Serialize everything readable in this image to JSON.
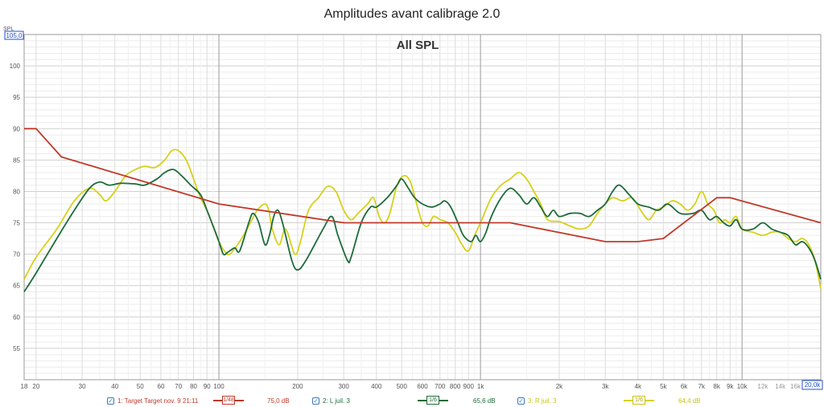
{
  "chart_data": {
    "type": "line",
    "title": "Amplitudes avant calibrage 2.0",
    "plot_label": "All SPL",
    "ylabel": "SPL",
    "y_top_value": "105,0",
    "x_end_value": "20,0k",
    "xscale": "log",
    "xlim": [
      18,
      20000
    ],
    "ylim": [
      50,
      105
    ],
    "grid": true,
    "y_ticks": [
      55,
      60,
      65,
      70,
      75,
      80,
      85,
      90,
      95,
      100
    ],
    "x_ticks": [
      {
        "v": 18,
        "label": "18"
      },
      {
        "v": 20,
        "label": "20"
      },
      {
        "v": 30,
        "label": "30"
      },
      {
        "v": 40,
        "label": "40"
      },
      {
        "v": 50,
        "label": "50"
      },
      {
        "v": 60,
        "label": "60"
      },
      {
        "v": 70,
        "label": "70"
      },
      {
        "v": 80,
        "label": "80"
      },
      {
        "v": 90,
        "label": "90"
      },
      {
        "v": 100,
        "label": "100"
      },
      {
        "v": 200,
        "label": "200"
      },
      {
        "v": 300,
        "label": "300"
      },
      {
        "v": 400,
        "label": "400"
      },
      {
        "v": 500,
        "label": "500"
      },
      {
        "v": 600,
        "label": "600"
      },
      {
        "v": 700,
        "label": "700"
      },
      {
        "v": 800,
        "label": "800"
      },
      {
        "v": 900,
        "label": "900"
      },
      {
        "v": 1000,
        "label": "1k"
      },
      {
        "v": 2000,
        "label": "2k"
      },
      {
        "v": 3000,
        "label": "3k"
      },
      {
        "v": 4000,
        "label": "4k"
      },
      {
        "v": 5000,
        "label": "5k"
      },
      {
        "v": 6000,
        "label": "6k"
      },
      {
        "v": 7000,
        "label": "7k"
      },
      {
        "v": 8000,
        "label": "8k"
      },
      {
        "v": 9000,
        "label": "9k"
      },
      {
        "v": 10000,
        "label": "10k"
      },
      {
        "v": 12000,
        "label": "12k"
      },
      {
        "v": 14000,
        "label": "14k"
      },
      {
        "v": 16000,
        "label": "16k"
      },
      {
        "v": 18000,
        "label": "18k"
      }
    ],
    "series": [
      {
        "name": "1: Target Target nov. 9 21:11",
        "color": "#c0392b",
        "smoothing": "1/48",
        "level": "75,0 dB",
        "points": [
          [
            18,
            90
          ],
          [
            20,
            90
          ],
          [
            25,
            85.5
          ],
          [
            100,
            78
          ],
          [
            300,
            75
          ],
          [
            1300,
            75
          ],
          [
            3000,
            72
          ],
          [
            4000,
            72
          ],
          [
            5000,
            72.5
          ],
          [
            8000,
            79
          ],
          [
            9000,
            79
          ],
          [
            20000,
            75
          ]
        ]
      },
      {
        "name": "2: L juil. 3",
        "color": "#1e6b3a",
        "smoothing": "1/6",
        "level": "65,6 dB",
        "points": [
          [
            18,
            64
          ],
          [
            20,
            67
          ],
          [
            24,
            72.5
          ],
          [
            28,
            77
          ],
          [
            32,
            80.5
          ],
          [
            35,
            81.5
          ],
          [
            38,
            81
          ],
          [
            42,
            81.3
          ],
          [
            48,
            81.2
          ],
          [
            52,
            81
          ],
          [
            58,
            82
          ],
          [
            62,
            83
          ],
          [
            67,
            83.5
          ],
          [
            72,
            82.5
          ],
          [
            78,
            81
          ],
          [
            85,
            79.5
          ],
          [
            90,
            77
          ],
          [
            95,
            74.5
          ],
          [
            100,
            72
          ],
          [
            104,
            70
          ],
          [
            108,
            70.3
          ],
          [
            115,
            71
          ],
          [
            120,
            70.5
          ],
          [
            130,
            75
          ],
          [
            135,
            76.5
          ],
          [
            142,
            75
          ],
          [
            150,
            71.5
          ],
          [
            156,
            73
          ],
          [
            162,
            76
          ],
          [
            168,
            77
          ],
          [
            175,
            75
          ],
          [
            190,
            69
          ],
          [
            200,
            67.5
          ],
          [
            215,
            69
          ],
          [
            250,
            74
          ],
          [
            270,
            76
          ],
          [
            285,
            73
          ],
          [
            310,
            69
          ],
          [
            320,
            69.5
          ],
          [
            350,
            75
          ],
          [
            380,
            77.5
          ],
          [
            400,
            77.5
          ],
          [
            440,
            79
          ],
          [
            480,
            81
          ],
          [
            500,
            82
          ],
          [
            530,
            80.5
          ],
          [
            560,
            79
          ],
          [
            600,
            78
          ],
          [
            650,
            77.5
          ],
          [
            700,
            78
          ],
          [
            730,
            78.5
          ],
          [
            770,
            77.5
          ],
          [
            820,
            75
          ],
          [
            860,
            73
          ],
          [
            920,
            72
          ],
          [
            960,
            73
          ],
          [
            1000,
            72
          ],
          [
            1050,
            73.5
          ],
          [
            1100,
            76
          ],
          [
            1200,
            79
          ],
          [
            1300,
            80.5
          ],
          [
            1400,
            79.5
          ],
          [
            1500,
            78
          ],
          [
            1600,
            79
          ],
          [
            1700,
            77.5
          ],
          [
            1800,
            76
          ],
          [
            1900,
            77
          ],
          [
            2000,
            76
          ],
          [
            2200,
            76.5
          ],
          [
            2400,
            76.5
          ],
          [
            2600,
            76
          ],
          [
            2800,
            77
          ],
          [
            3000,
            78
          ],
          [
            3200,
            80
          ],
          [
            3400,
            81
          ],
          [
            3700,
            79.5
          ],
          [
            4000,
            78
          ],
          [
            4400,
            77.5
          ],
          [
            4800,
            77
          ],
          [
            5200,
            78
          ],
          [
            5800,
            76.5
          ],
          [
            6500,
            76.5
          ],
          [
            7000,
            77
          ],
          [
            7500,
            75.5
          ],
          [
            8000,
            76
          ],
          [
            8500,
            75
          ],
          [
            9000,
            74.5
          ],
          [
            9500,
            75.5
          ],
          [
            10000,
            74
          ],
          [
            11000,
            74
          ],
          [
            12000,
            75
          ],
          [
            13000,
            74
          ],
          [
            14000,
            73.5
          ],
          [
            15000,
            73
          ],
          [
            16000,
            71.5
          ],
          [
            17000,
            72
          ],
          [
            18000,
            71
          ],
          [
            19000,
            69
          ],
          [
            20000,
            66
          ]
        ]
      },
      {
        "name": "3: R juil. 3",
        "color": "#d6d11a",
        "smoothing": "1/6",
        "level": "64,4 dB",
        "points": [
          [
            18,
            66
          ],
          [
            20,
            69.5
          ],
          [
            24,
            74
          ],
          [
            28,
            78.5
          ],
          [
            32,
            80.5
          ],
          [
            35,
            79.5
          ],
          [
            37,
            78.5
          ],
          [
            40,
            80
          ],
          [
            44,
            82.5
          ],
          [
            48,
            83.5
          ],
          [
            52,
            84
          ],
          [
            57,
            83.8
          ],
          [
            62,
            85
          ],
          [
            66,
            86.5
          ],
          [
            70,
            86.5
          ],
          [
            75,
            85
          ],
          [
            80,
            82
          ],
          [
            85,
            79
          ],
          [
            90,
            77
          ],
          [
            95,
            74.5
          ],
          [
            100,
            72
          ],
          [
            105,
            70.5
          ],
          [
            110,
            70
          ],
          [
            120,
            72
          ],
          [
            130,
            74.5
          ],
          [
            140,
            77
          ],
          [
            150,
            78
          ],
          [
            155,
            77
          ],
          [
            160,
            74
          ],
          [
            170,
            71.5
          ],
          [
            180,
            74
          ],
          [
            195,
            70
          ],
          [
            205,
            72
          ],
          [
            220,
            77
          ],
          [
            240,
            79
          ],
          [
            260,
            80.8
          ],
          [
            280,
            80
          ],
          [
            300,
            77
          ],
          [
            320,
            75.5
          ],
          [
            340,
            76.5
          ],
          [
            370,
            78
          ],
          [
            390,
            79
          ],
          [
            410,
            76
          ],
          [
            430,
            75
          ],
          [
            450,
            76.5
          ],
          [
            480,
            81
          ],
          [
            510,
            82.5
          ],
          [
            540,
            81.5
          ],
          [
            570,
            78
          ],
          [
            600,
            75
          ],
          [
            630,
            74.5
          ],
          [
            660,
            76
          ],
          [
            700,
            75.5
          ],
          [
            750,
            75
          ],
          [
            800,
            73.5
          ],
          [
            850,
            71.5
          ],
          [
            900,
            70.5
          ],
          [
            950,
            73
          ],
          [
            1000,
            75
          ],
          [
            1100,
            79
          ],
          [
            1200,
            81
          ],
          [
            1300,
            82
          ],
          [
            1400,
            83
          ],
          [
            1500,
            82
          ],
          [
            1600,
            80
          ],
          [
            1700,
            78
          ],
          [
            1800,
            75.5
          ],
          [
            2000,
            75.2
          ],
          [
            2200,
            74.5
          ],
          [
            2400,
            74
          ],
          [
            2600,
            74.5
          ],
          [
            2800,
            76.5
          ],
          [
            3000,
            78
          ],
          [
            3200,
            79
          ],
          [
            3500,
            78.5
          ],
          [
            3800,
            79
          ],
          [
            4100,
            77
          ],
          [
            4400,
            75.5
          ],
          [
            4700,
            77
          ],
          [
            5000,
            77.5
          ],
          [
            5400,
            78.5
          ],
          [
            5800,
            78
          ],
          [
            6200,
            77
          ],
          [
            6600,
            78
          ],
          [
            7000,
            80
          ],
          [
            7400,
            78
          ],
          [
            7800,
            77
          ],
          [
            8200,
            75
          ],
          [
            8600,
            75.5
          ],
          [
            9000,
            75
          ],
          [
            9500,
            76
          ],
          [
            10000,
            74
          ],
          [
            11000,
            73.5
          ],
          [
            12000,
            73
          ],
          [
            13000,
            73.5
          ],
          [
            14000,
            73.5
          ],
          [
            15000,
            72.5
          ],
          [
            16000,
            72
          ],
          [
            17000,
            72.5
          ],
          [
            18000,
            71.5
          ],
          [
            19000,
            69
          ],
          [
            20000,
            64.5
          ]
        ]
      }
    ]
  }
}
